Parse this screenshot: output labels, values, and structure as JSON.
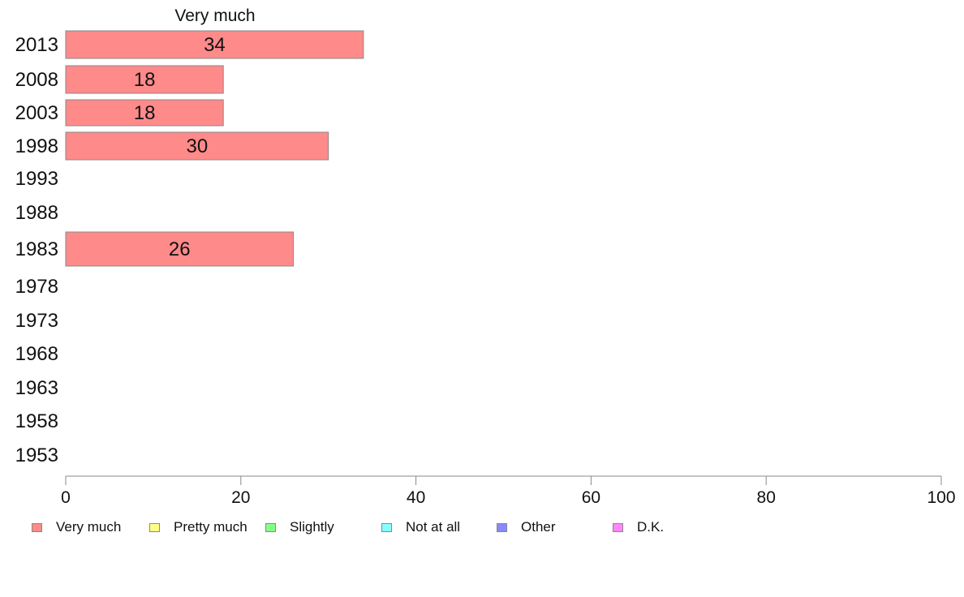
{
  "chart_data": {
    "type": "bar",
    "orientation": "horizontal",
    "stacked": true,
    "series_header": "Very much",
    "categories": [
      "2013",
      "2008",
      "2003",
      "1998",
      "1993",
      "1988",
      "1983",
      "1978",
      "1973",
      "1968",
      "1963",
      "1958",
      "1953"
    ],
    "series": [
      {
        "name": "Very much",
        "color": "#ff8a8a",
        "values": [
          34,
          18,
          18,
          30,
          null,
          null,
          26,
          null,
          null,
          null,
          null,
          null,
          null
        ],
        "labels": [
          "34",
          "18",
          "18",
          "30",
          "",
          "",
          "26",
          "",
          "",
          "",
          "",
          "",
          ""
        ]
      }
    ],
    "xlim": [
      0,
      100
    ],
    "xticks": [
      "0",
      "20",
      "40",
      "60",
      "80",
      "100"
    ],
    "grid": false,
    "legend_position": "bottom",
    "legend": [
      {
        "label": "Very much",
        "color": "#ff8a8a"
      },
      {
        "label": "Pretty much",
        "color": "#ffff88"
      },
      {
        "label": "Slightly",
        "color": "#88ff88"
      },
      {
        "label": "Not at all",
        "color": "#88ffff"
      },
      {
        "label": "Other",
        "color": "#8888ff"
      },
      {
        "label": "D.K.",
        "color": "#ff88ff"
      }
    ]
  }
}
